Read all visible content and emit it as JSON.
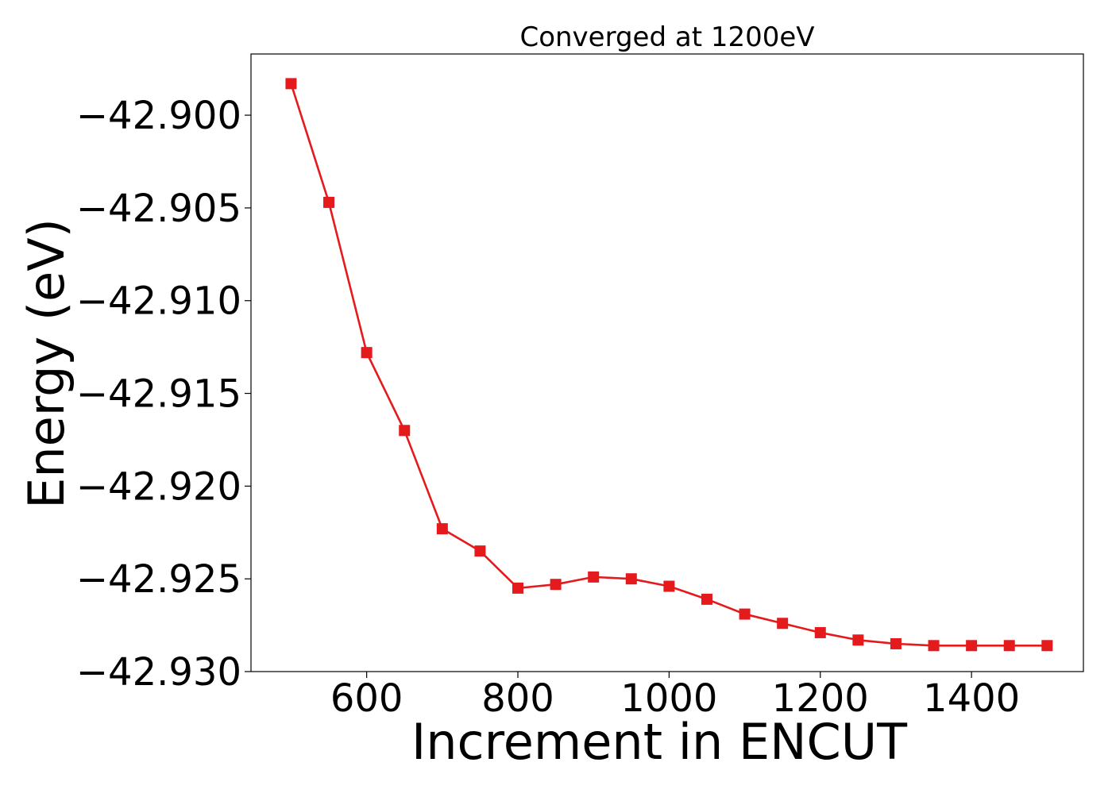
{
  "chart_data": {
    "type": "line",
    "title": "Converged at 1200eV",
    "xlabel": "Increment in ENCUT",
    "ylabel": "Energy (eV)",
    "xlim": [
      447,
      1548
    ],
    "ylim": [
      -42.93,
      -42.8967
    ],
    "x_ticks": [
      600,
      800,
      1000,
      1200,
      1400
    ],
    "x_tick_labels": [
      "600",
      "800",
      "1000",
      "1200",
      "1400"
    ],
    "y_ticks": [
      -42.93,
      -42.925,
      -42.92,
      -42.915,
      -42.91,
      -42.905,
      -42.9
    ],
    "y_tick_labels": [
      "−42.930",
      "−42.925",
      "−42.920",
      "−42.915",
      "−42.910",
      "−42.905",
      "−42.900"
    ],
    "grid": false,
    "series": [
      {
        "color": "#e41a1c",
        "marker": "square",
        "x": [
          500,
          550,
          600,
          650,
          700,
          750,
          800,
          850,
          900,
          950,
          1000,
          1050,
          1100,
          1150,
          1200,
          1250,
          1300,
          1350,
          1400,
          1450,
          1500
        ],
        "y": [
          -42.8983,
          -42.9047,
          -42.9128,
          -42.917,
          -42.9223,
          -42.9235,
          -42.9255,
          -42.9253,
          -42.9249,
          -42.925,
          -42.9254,
          -42.9261,
          -42.9269,
          -42.9274,
          -42.9279,
          -42.9283,
          -42.9285,
          -42.9286,
          -42.9286,
          -42.9286,
          -42.9286
        ]
      }
    ]
  }
}
